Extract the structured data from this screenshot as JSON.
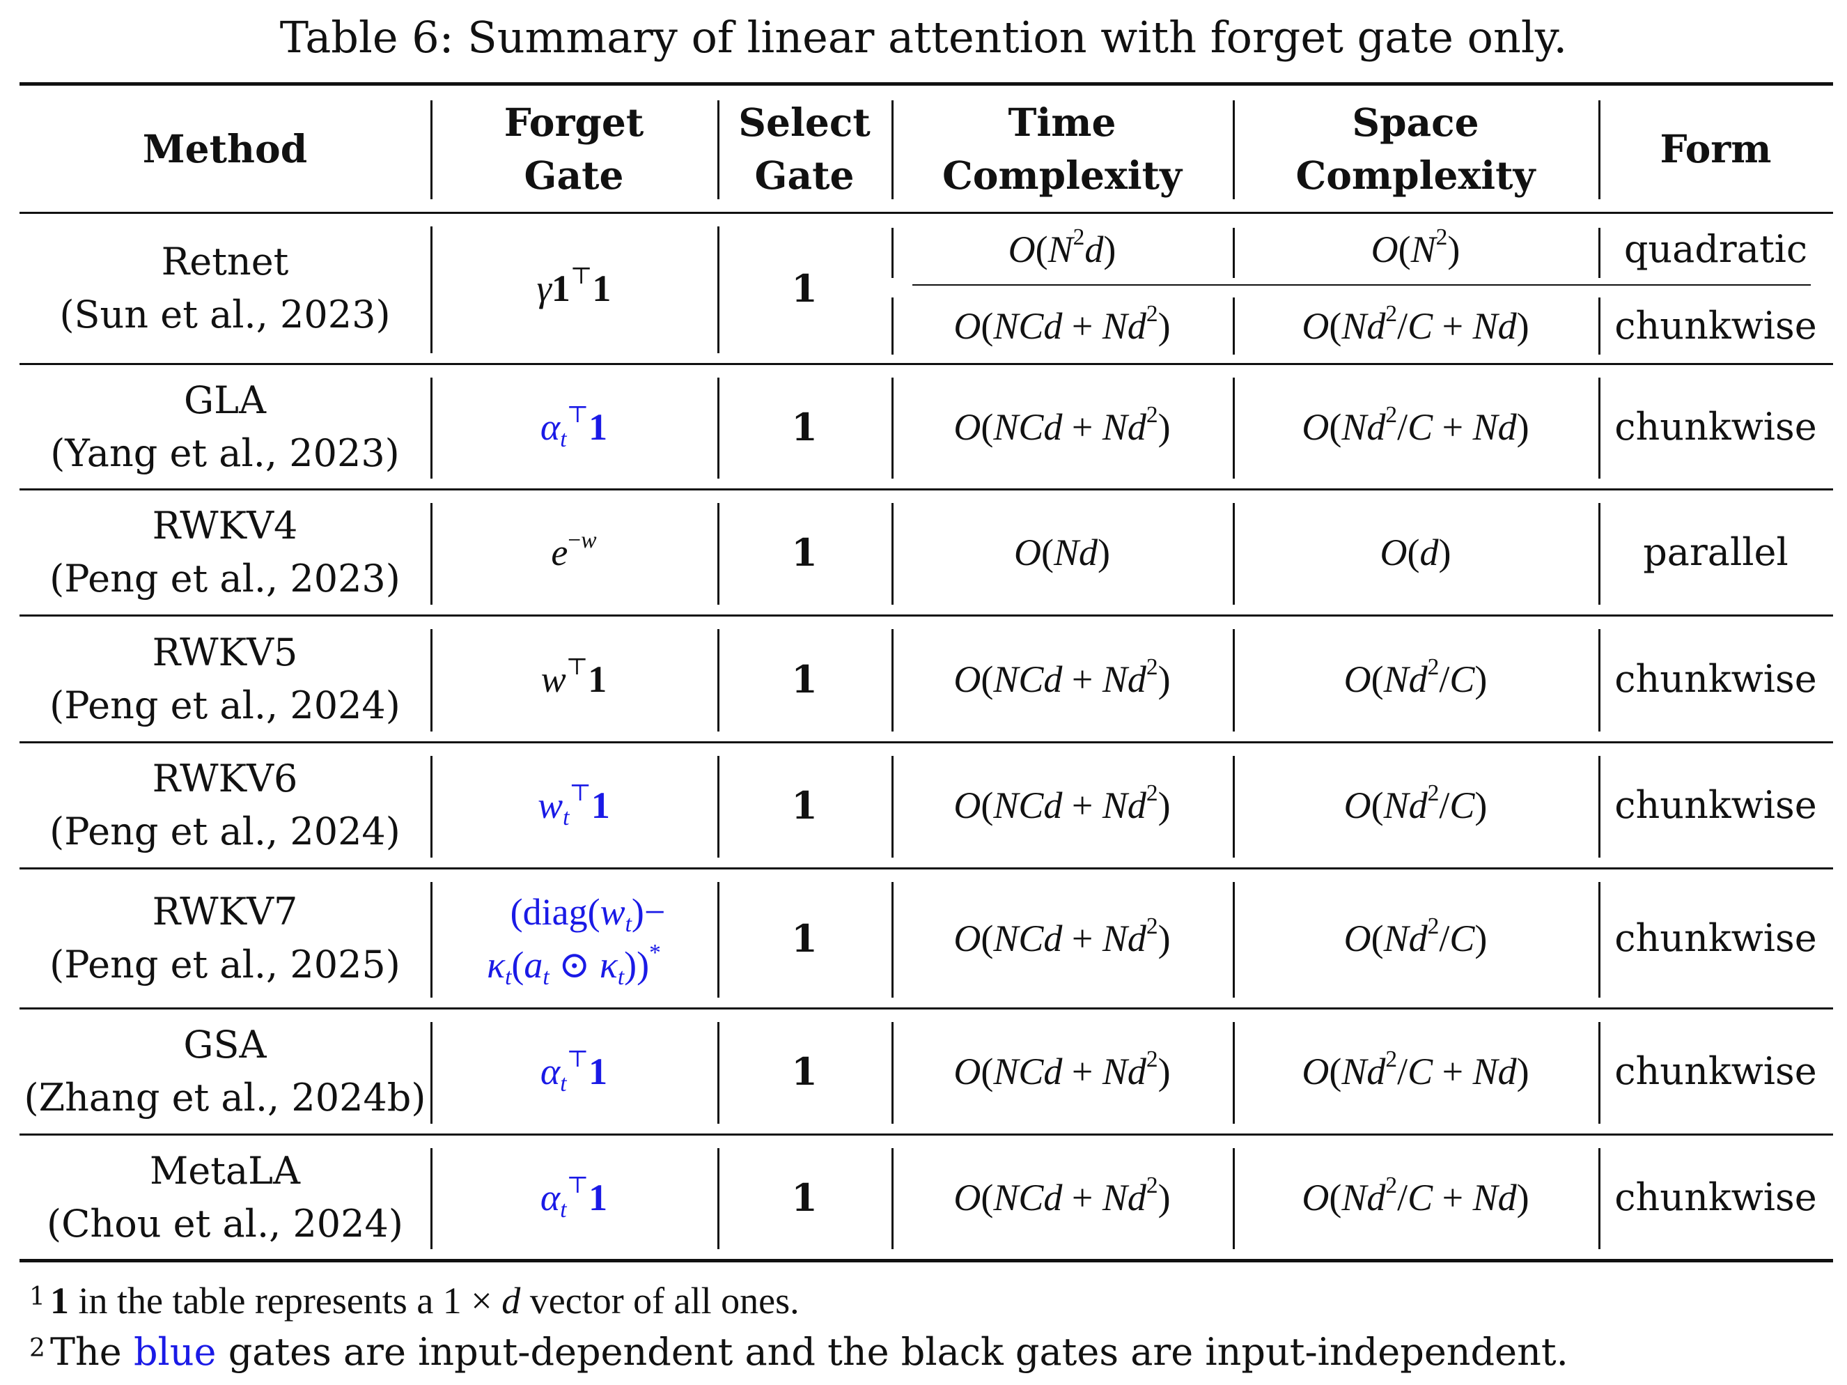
{
  "caption": "Table 6: Summary of linear attention with forget gate only.",
  "headers": {
    "method": "Method",
    "forget_gate": [
      "Forget",
      "Gate"
    ],
    "select_gate": [
      "Select",
      "Gate"
    ],
    "time_complexity": [
      "Time",
      "Complexity"
    ],
    "space_complexity": [
      "Space",
      "Complexity"
    ],
    "form": "Form"
  },
  "rows": [
    {
      "name": "Retnet",
      "cite": "(Sun et al., 2023)",
      "forget_gate": "γ1⊤1",
      "select_gate": "1",
      "time": "O(N²d)",
      "space": "O(N²)",
      "form": "quadratic",
      "time2": "O(NCd + Nd²)",
      "space2": "O(Nd²/C + Nd)",
      "form2": "chunkwise"
    },
    {
      "name": "GLA",
      "cite": "(Yang et al., 2023)",
      "forget_gate": "αt⊤1",
      "select_gate": "1",
      "time": "O(NCd + Nd²)",
      "space": "O(Nd²/C + Nd)",
      "form": "chunkwise"
    },
    {
      "name": "RWKV4",
      "cite": "(Peng et al., 2023)",
      "forget_gate": "e−w",
      "select_gate": "1",
      "time": "O(Nd)",
      "space": "O(d)",
      "form": "parallel"
    },
    {
      "name": "RWKV5",
      "cite": "(Peng et al., 2024)",
      "forget_gate": "w⊤1",
      "select_gate": "1",
      "time": "O(NCd + Nd²)",
      "space": "O(Nd²/C)",
      "form": "chunkwise"
    },
    {
      "name": "RWKV6",
      "cite": "(Peng et al., 2024)",
      "forget_gate": "wt⊤1",
      "select_gate": "1",
      "time": "O(NCd + Nd²)",
      "space": "O(Nd²/C)",
      "form": "chunkwise"
    },
    {
      "name": "RWKV7",
      "cite": "(Peng et al., 2025)",
      "forget_gate": "(diag(wt)− κt(at ⊙ κt))*",
      "select_gate": "1",
      "time": "O(NCd + Nd²)",
      "space": "O(Nd²/C)",
      "form": "chunkwise"
    },
    {
      "name": "GSA",
      "cite": "(Zhang et al., 2024b)",
      "forget_gate": "αt⊤1",
      "select_gate": "1",
      "time": "O(NCd + Nd²)",
      "space": "O(Nd²/C + Nd)",
      "form": "chunkwise"
    },
    {
      "name": "MetaLA",
      "cite": "(Chou et al., 2024)",
      "forget_gate": "αt⊤1",
      "select_gate": "1",
      "time": "O(NCd + Nd²)",
      "space": "O(Nd²/C + Nd)",
      "form": "chunkwise"
    }
  ],
  "notes": {
    "note1_mark": "1",
    "note1": "1 in the table represents a 1 × d vector of all ones.",
    "note2_mark": "2",
    "note2_pre": "The",
    "note2_blue": "blue",
    "note2_post": "gates are input-dependent and the black gates are input-independent."
  },
  "colors": {
    "input_dependent": "#1a1ae6",
    "input_independent": "#111111"
  }
}
